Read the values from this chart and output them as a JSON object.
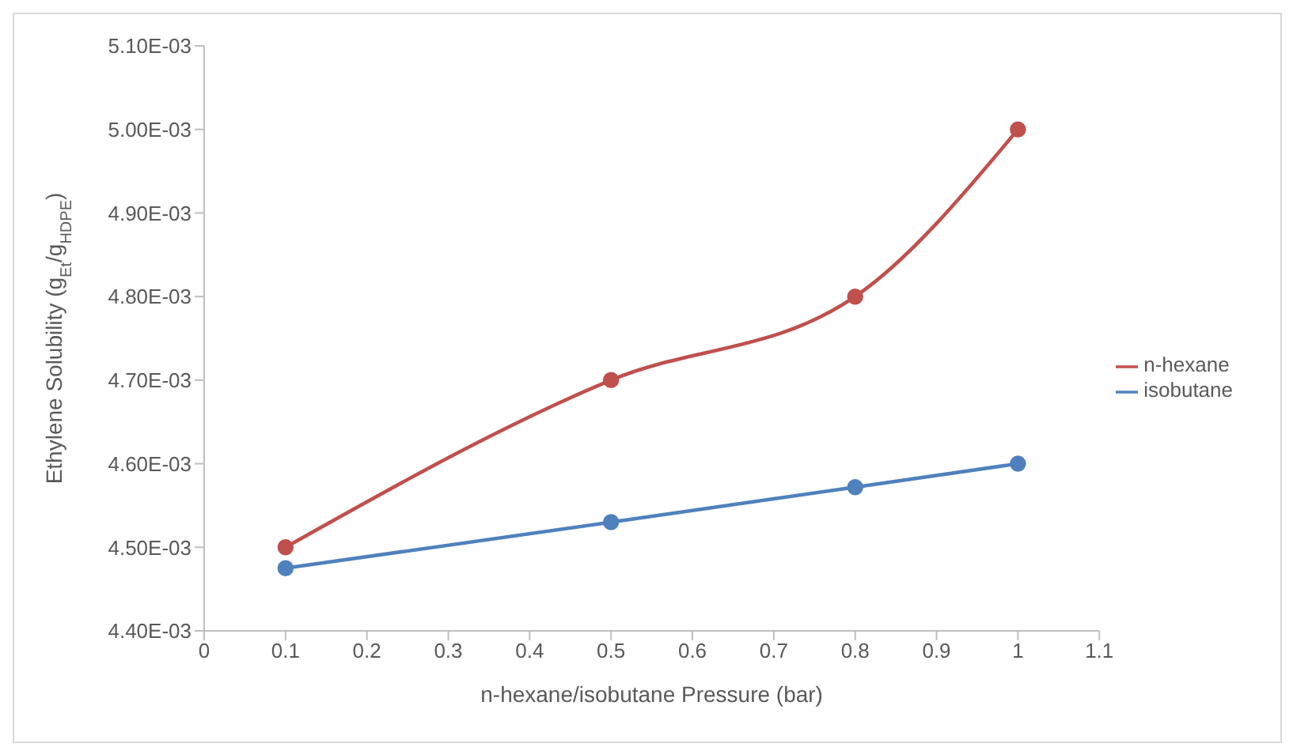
{
  "chart_data": {
    "type": "line",
    "xlabel": "n-hexane/isobutane Pressure (bar)",
    "ylabel": "Ethylene Solubility (g$_{Et}$/g$_{HDPE}$)",
    "x": [
      0.1,
      0.5,
      0.8,
      1
    ],
    "series": [
      {
        "name": "n-hexane",
        "color": "#c0504d",
        "values": [
          0.0045,
          0.0047,
          0.0048,
          0.005
        ]
      },
      {
        "name": "isobutane",
        "color": "#4f81bd",
        "values": [
          0.004475,
          0.00453,
          0.004572,
          0.0046
        ]
      }
    ],
    "xlim": [
      0,
      1.1
    ],
    "xticks": [
      0,
      0.1,
      0.2,
      0.3,
      0.4,
      0.5,
      0.6,
      0.7,
      0.8,
      0.9,
      1,
      1.1
    ],
    "ylim": [
      0.0044,
      0.0051
    ],
    "yticks": [
      {
        "value": 0.0044,
        "label": "4.40E-03"
      },
      {
        "value": 0.0045,
        "label": "4.50E-03"
      },
      {
        "value": 0.0046,
        "label": "4.60E-03"
      },
      {
        "value": 0.0047,
        "label": "4.70E-03"
      },
      {
        "value": 0.0048,
        "label": "4.80E-03"
      },
      {
        "value": 0.0049,
        "label": "4.90E-03"
      },
      {
        "value": 0.005,
        "label": "5.00E-03"
      },
      {
        "value": 0.0051,
        "label": "5.10E-03"
      }
    ],
    "grid": false,
    "legend": "right",
    "marker": "circle",
    "line_style": "solid"
  }
}
